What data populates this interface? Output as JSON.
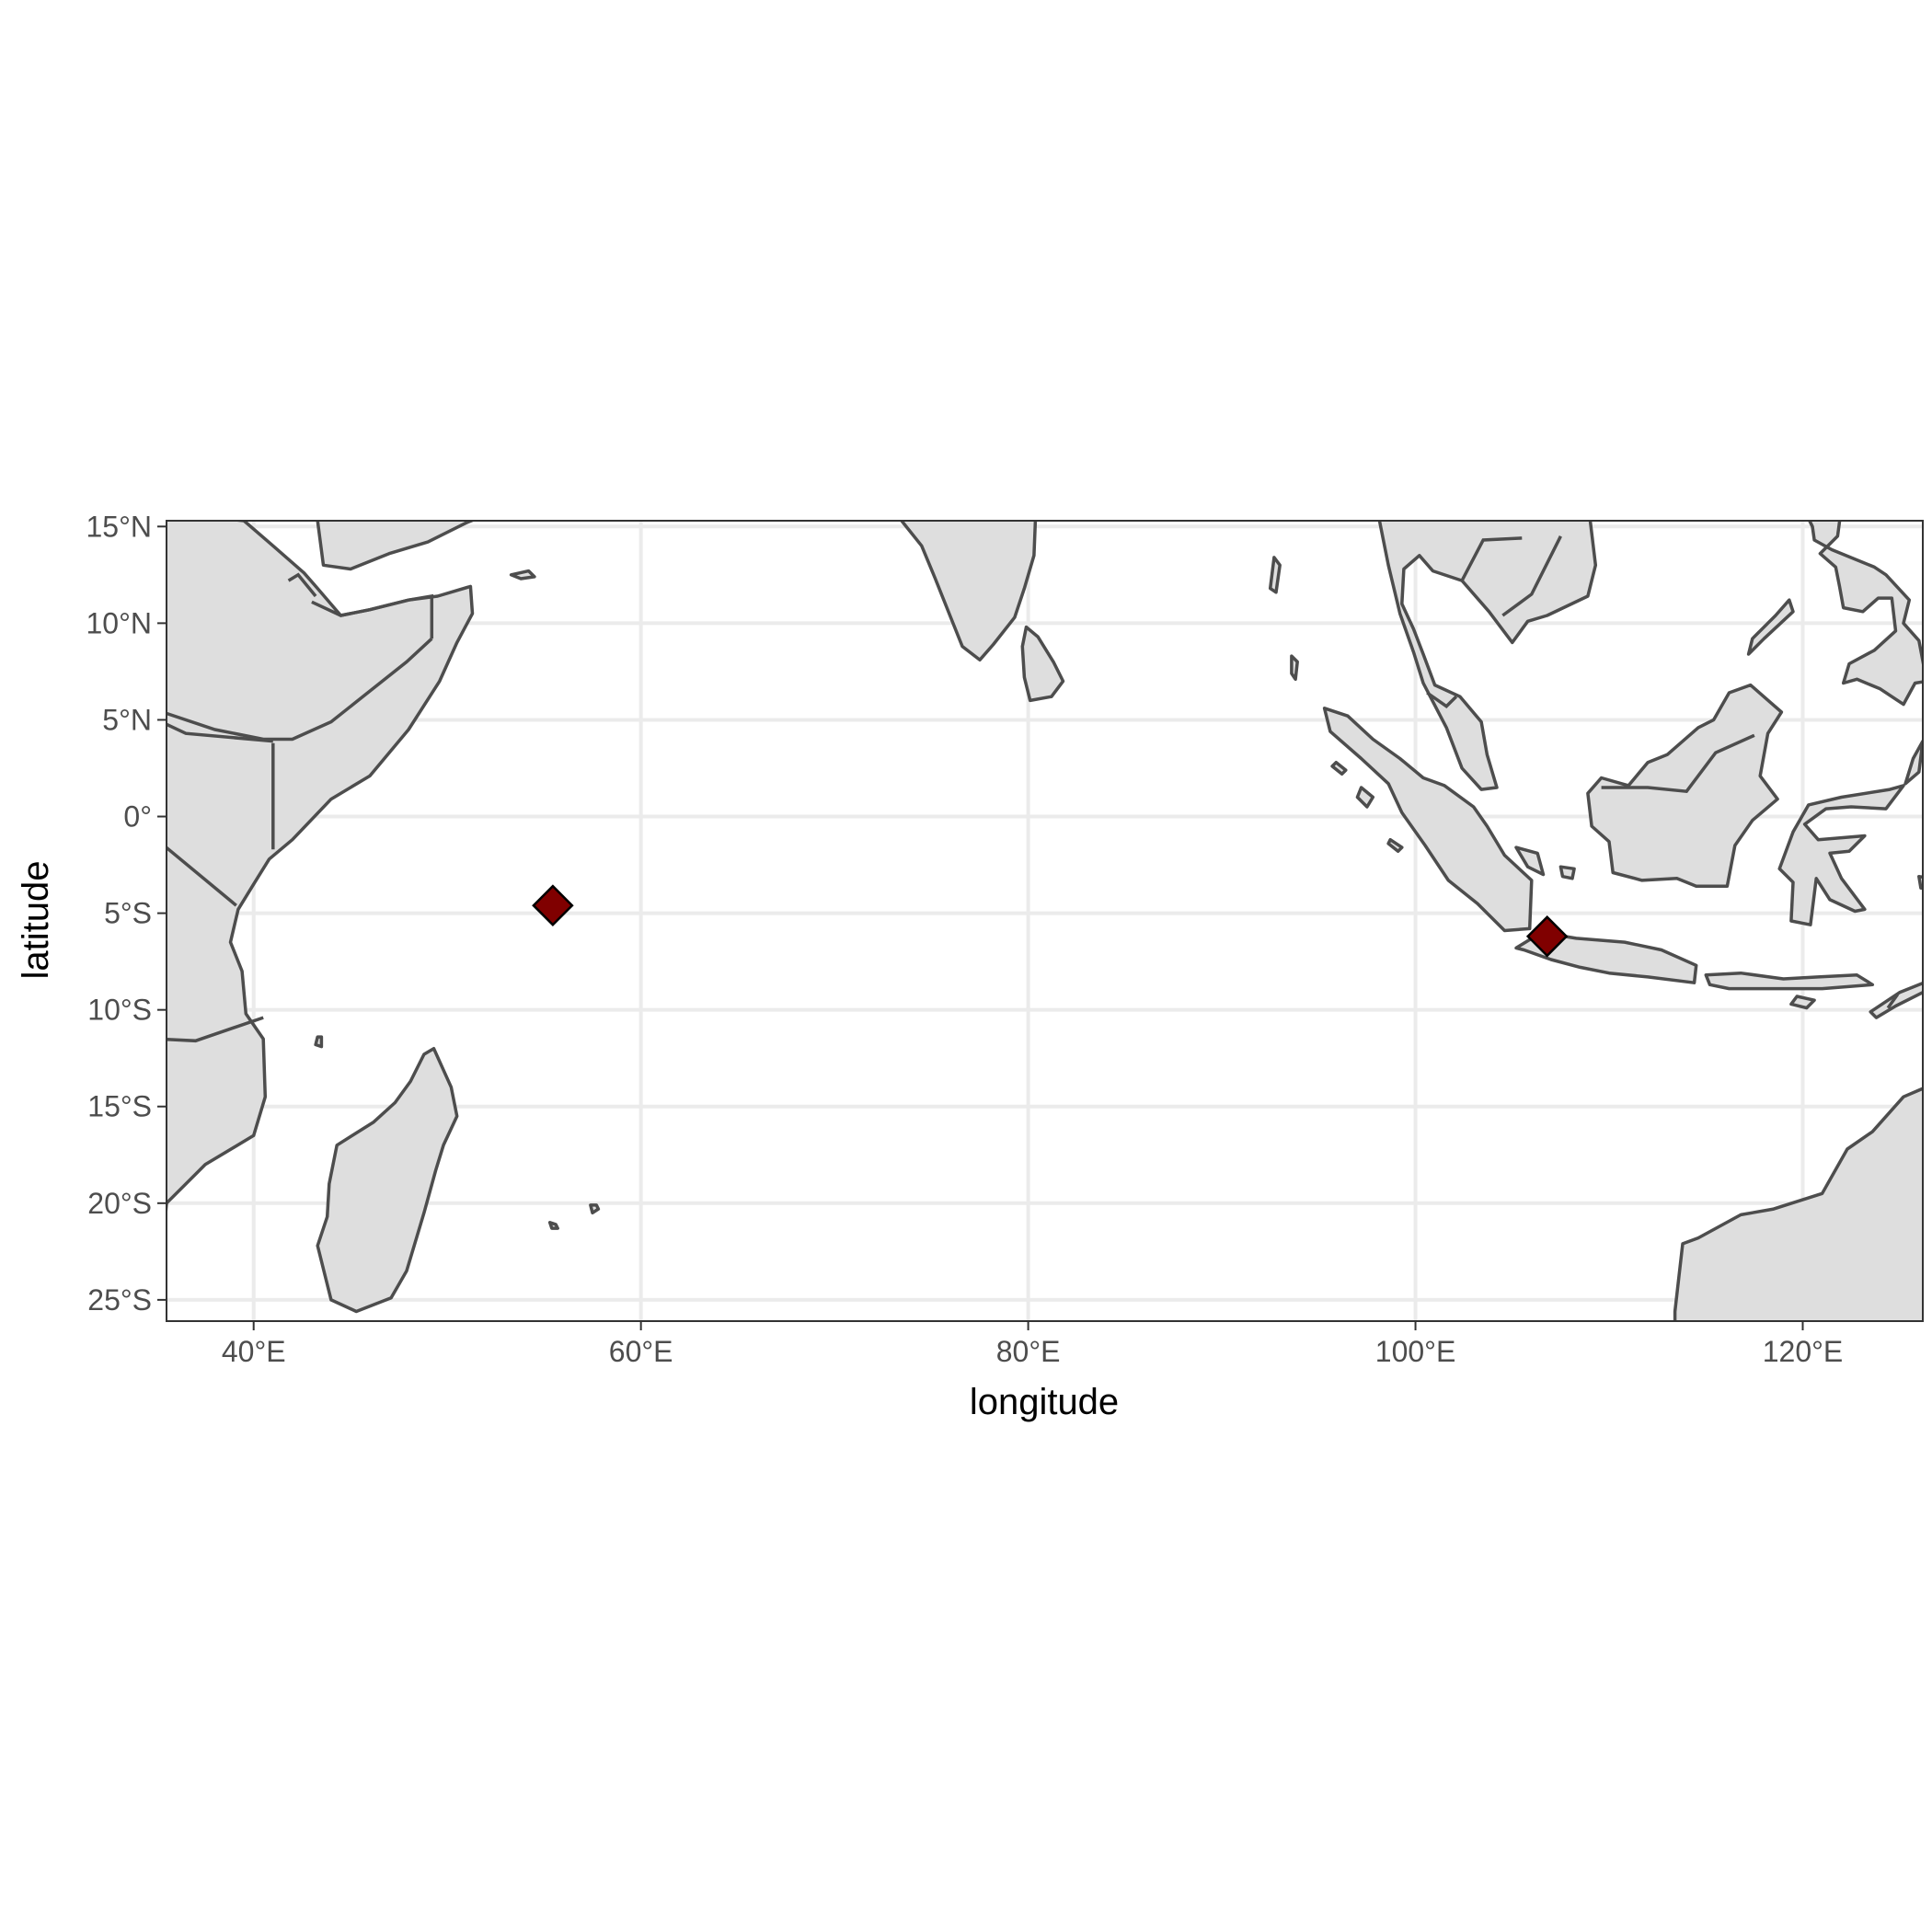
{
  "chart_data": {
    "type": "scatter",
    "map": true,
    "xlabel": "longitude",
    "ylabel": "latitude",
    "xlim": [
      35.5,
      126.2
    ],
    "ylim": [
      -26.1,
      15.3
    ],
    "x_ticks": [
      {
        "value": 40,
        "label": "40°E"
      },
      {
        "value": 60,
        "label": "60°E"
      },
      {
        "value": 80,
        "label": "80°E"
      },
      {
        "value": 100,
        "label": "100°E"
      },
      {
        "value": 120,
        "label": "120°E"
      }
    ],
    "y_ticks": [
      {
        "value": 15,
        "label": "15°N"
      },
      {
        "value": 10,
        "label": "10°N"
      },
      {
        "value": 5,
        "label": "5°N"
      },
      {
        "value": 0,
        "label": "0°"
      },
      {
        "value": -5,
        "label": "5°S"
      },
      {
        "value": -10,
        "label": "10°S"
      },
      {
        "value": -15,
        "label": "15°S"
      },
      {
        "value": -20,
        "label": "20°S"
      },
      {
        "value": -25,
        "label": "25°S"
      }
    ],
    "grid": true,
    "land_fill": "#dedede",
    "land_outline": "#4d4d4d",
    "marker_shape": "diamond",
    "marker_color": "#800000",
    "points": [
      {
        "lon": 55.45,
        "lat": -4.6
      },
      {
        "lon": 106.8,
        "lat": -6.2
      }
    ]
  }
}
